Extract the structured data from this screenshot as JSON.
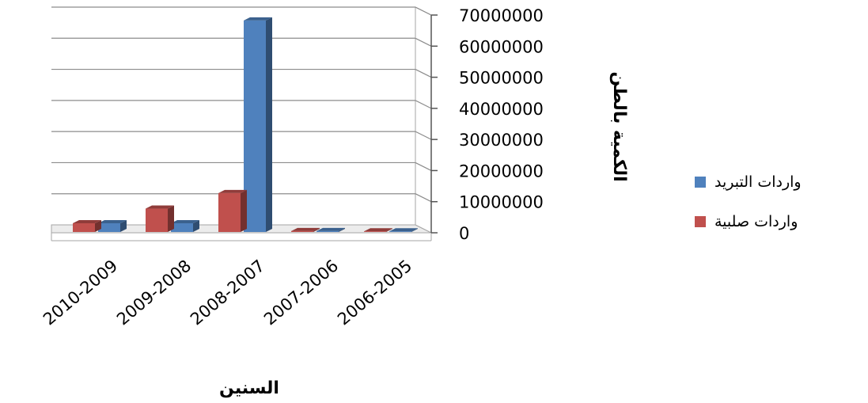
{
  "chart_data": {
    "type": "bar",
    "categories": [
      "2010-2009",
      "2009-2008",
      "2008-2007",
      "2007-2006",
      "2006-2005"
    ],
    "series": [
      {
        "name": "واردات صلبية",
        "color": "#c0504d",
        "values": [
          2800000,
          7500000,
          12500000,
          300000,
          200000
        ]
      },
      {
        "name": "واردات التبريد",
        "color": "#4f81bd",
        "values": [
          2800000,
          2800000,
          68000000,
          300000,
          200000
        ]
      }
    ],
    "xlabel": "السنين",
    "ylabel": "الكمية بالطن",
    "ylim": [
      0,
      70000000
    ],
    "yticks": [
      0,
      10000000,
      20000000,
      30000000,
      40000000,
      50000000,
      60000000,
      70000000
    ],
    "grid": true,
    "legend_position": "right",
    "legend_order": [
      1,
      0
    ]
  }
}
